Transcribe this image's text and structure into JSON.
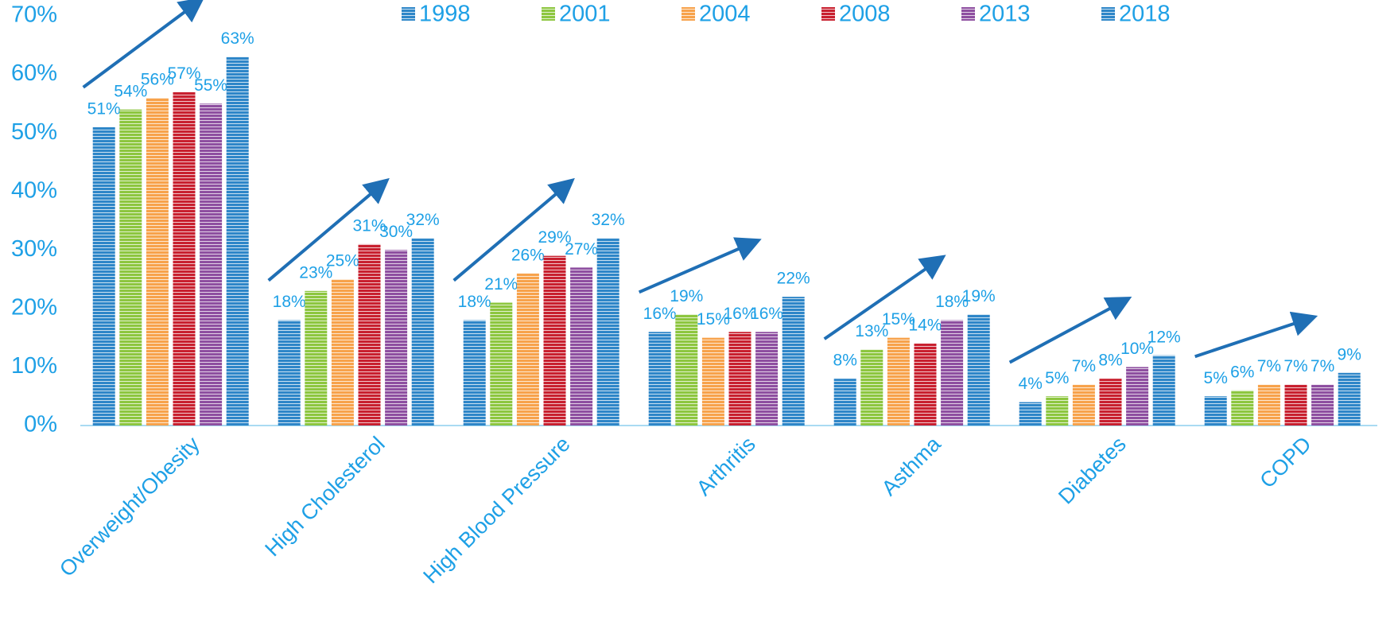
{
  "chart_data": {
    "type": "bar",
    "categories": [
      "Overweight/Obesity",
      "High Cholesterol",
      "High Blood Pressure",
      "Arthritis",
      "Asthma",
      "Diabetes",
      "COPD"
    ],
    "series": [
      {
        "name": "1998",
        "color": "#2e86c8",
        "values": [
          51,
          18,
          18,
          16,
          8,
          4,
          5
        ],
        "value_labels": [
          "51%",
          "18%",
          "18%",
          "16%",
          "8%",
          "4%",
          "5%"
        ]
      },
      {
        "name": "2001",
        "color": "#8dc63f",
        "values": [
          54,
          23,
          21,
          19,
          13,
          5,
          6
        ],
        "value_labels": [
          "54%",
          "23%",
          "21%",
          "19%",
          "13%",
          "5%",
          "6%"
        ]
      },
      {
        "name": "2004",
        "color": "#f7a24b",
        "values": [
          56,
          25,
          26,
          15,
          15,
          7,
          7
        ],
        "value_labels": [
          "56%",
          "25%",
          "26%",
          "15%",
          "15%",
          "7%",
          "7%"
        ]
      },
      {
        "name": "2008",
        "color": "#c8202f",
        "values": [
          57,
          31,
          29,
          16,
          14,
          8,
          7
        ],
        "value_labels": [
          "57%",
          "31%",
          "29%",
          "16%",
          "14%",
          "8%",
          "7%"
        ]
      },
      {
        "name": "2013",
        "color": "#8e4fa0",
        "values": [
          55,
          30,
          27,
          16,
          18,
          10,
          7
        ],
        "value_labels": [
          "55%",
          "30%",
          "27%",
          "16%",
          "18%",
          "10%",
          "7%"
        ]
      },
      {
        "name": "2018",
        "color": "#2e86c8",
        "values": [
          63,
          32,
          32,
          22,
          19,
          12,
          9
        ],
        "value_labels": [
          "63%",
          "32%",
          "32%",
          "22%",
          "19%",
          "12%",
          "9%"
        ]
      }
    ],
    "ylim": [
      0,
      70
    ],
    "yticks": [
      {
        "value": 0,
        "label": "0%"
      },
      {
        "value": 10,
        "label": "10%"
      },
      {
        "value": 20,
        "label": "20%"
      },
      {
        "value": 30,
        "label": "30%"
      },
      {
        "value": 40,
        "label": "40%"
      },
      {
        "value": 50,
        "label": "50%"
      },
      {
        "value": 60,
        "label": "60%"
      },
      {
        "value": 70,
        "label": "70%"
      }
    ],
    "grid": false
  }
}
